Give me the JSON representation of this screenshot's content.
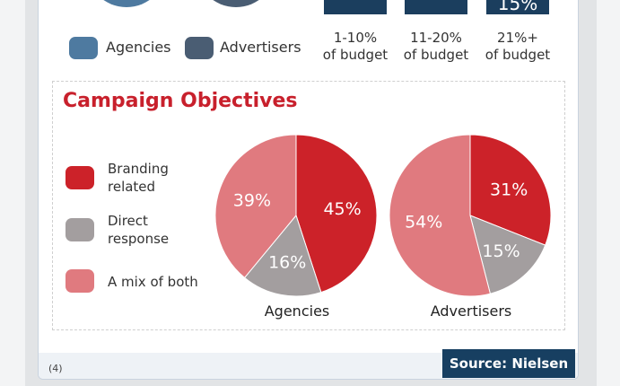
{
  "top_legend": {
    "agencies": "Agencies",
    "advertisers": "Advertisers",
    "agencies_color": "#4e7aa0",
    "advertisers_color": "#4a5d73"
  },
  "budget_bars": [
    {
      "top_label": "",
      "l1": "1-10%",
      "l2": "of budget"
    },
    {
      "top_label": "",
      "l1": "11-20%",
      "l2": "of budget"
    },
    {
      "top_label": "15%",
      "l1": "21%+",
      "l2": "of budget"
    }
  ],
  "chart_data": {
    "type": "pie",
    "title": "Campaign Objectives",
    "legend": [
      {
        "label1": "Branding",
        "label2": "related",
        "color": "#cc2229"
      },
      {
        "label1": "Direct",
        "label2": "response",
        "color": "#a39e9f"
      },
      {
        "label1": "A mix of both",
        "label2": "",
        "color": "#e07a7f"
      }
    ],
    "pies": [
      {
        "name": "Agencies",
        "values": [
          45,
          16,
          39
        ],
        "labels": [
          "45%",
          "16%",
          "39%"
        ]
      },
      {
        "name": "Advertisers",
        "values": [
          31,
          15,
          54
        ],
        "labels": [
          "31%",
          "15%",
          "54%"
        ]
      }
    ]
  },
  "footer": {
    "note": "(4)",
    "source": "Source: Nielsen"
  }
}
